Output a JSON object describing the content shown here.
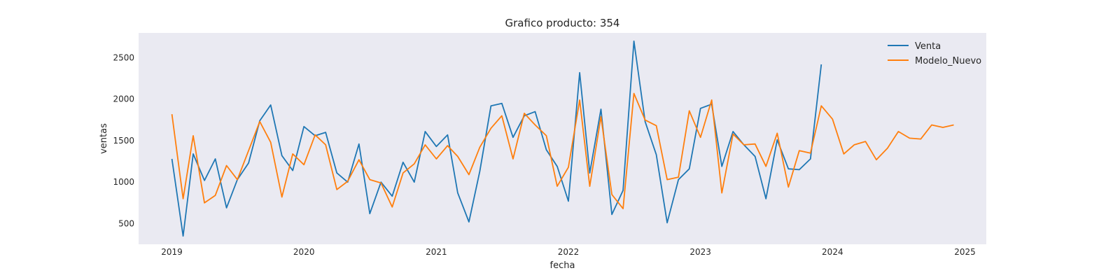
{
  "chart_data": {
    "type": "line",
    "title": "Grafico producto: 354",
    "xlabel": "fecha",
    "ylabel": "ventas",
    "x_tick_labels": [
      "2019",
      "2020",
      "2021",
      "2022",
      "2023",
      "2024",
      "2025"
    ],
    "y_tick_labels": [
      "500",
      "1000",
      "1500",
      "2000",
      "2500"
    ],
    "y_ticks": [
      500,
      1000,
      1500,
      2000,
      2500
    ],
    "xlim": [
      "2018-10-01",
      "2025-03-01"
    ],
    "ylim": [
      250,
      2800
    ],
    "grid": false,
    "legend_position": "top-right",
    "background": "#eaeaf2",
    "series": [
      {
        "name": "Venta",
        "color": "#1f77b4",
        "start": "2019-01",
        "values": [
          1280,
          350,
          1340,
          1020,
          1280,
          690,
          1030,
          1230,
          1740,
          1930,
          1320,
          1140,
          1670,
          1560,
          1600,
          1110,
          1000,
          1460,
          620,
          1000,
          830,
          1240,
          1000,
          1610,
          1430,
          1570,
          870,
          520,
          1130,
          1920,
          1950,
          1540,
          1800,
          1850,
          1390,
          1190,
          770,
          2320,
          1110,
          1880,
          610,
          900,
          2700,
          1730,
          1330,
          510,
          1030,
          1160,
          1890,
          1940,
          1190,
          1610,
          1450,
          1310,
          800,
          1510,
          1160,
          1150,
          1280,
          2420
        ]
      },
      {
        "name": "Modelo_Nuevo",
        "color": "#ff7f0e",
        "start": "2019-01",
        "values": [
          1820,
          800,
          1560,
          750,
          840,
          1200,
          1030,
          1380,
          1730,
          1480,
          820,
          1340,
          1210,
          1570,
          1450,
          910,
          1010,
          1270,
          1030,
          990,
          700,
          1110,
          1220,
          1450,
          1280,
          1440,
          1310,
          1090,
          1420,
          1650,
          1800,
          1280,
          1830,
          1690,
          1560,
          950,
          1180,
          1990,
          950,
          1790,
          850,
          680,
          2070,
          1750,
          1680,
          1030,
          1060,
          1860,
          1540,
          1990,
          870,
          1580,
          1450,
          1460,
          1190,
          1590,
          940,
          1380,
          1350,
          1920,
          1760,
          1340,
          1450,
          1490,
          1270,
          1410,
          1610,
          1530,
          1520,
          1690,
          1660,
          1690
        ]
      }
    ]
  }
}
